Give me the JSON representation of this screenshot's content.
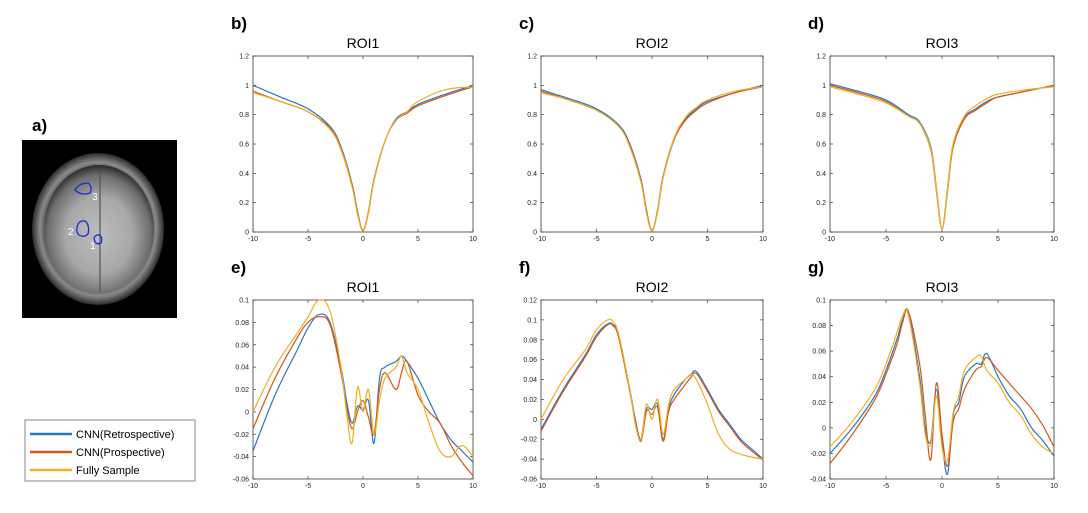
{
  "colors": {
    "retro": "#2a76c6",
    "prosp": "#d9541a",
    "full": "#edb120",
    "roi_outline": "#1a2fd0"
  },
  "legend": {
    "entries": [
      {
        "name": "CNN(Retrospective)",
        "color": "#2a76c6"
      },
      {
        "name": "CNN(Prospective)",
        "color": "#d9541a"
      },
      {
        "name": "Fully Sample",
        "color": "#edb120"
      }
    ]
  },
  "image_panel": {
    "label": "a)",
    "roi_numbers": [
      "1",
      "2",
      "3"
    ]
  },
  "chart_data": [
    {
      "id": "b",
      "label": "b)",
      "title": "ROI1",
      "type": "line",
      "xlim": [
        -10,
        10
      ],
      "ylim": [
        0,
        1.2
      ],
      "xticks": [
        "-10",
        "-5",
        "0",
        "5",
        "10"
      ],
      "yticks": [
        "0",
        "0.2",
        "0.4",
        "0.6",
        "0.8",
        "1",
        "1.2"
      ],
      "series": [
        {
          "name": "CNN(Retrospective)",
          "key": "retro",
          "x": [
            -10,
            -7.5,
            -5,
            -3,
            -2,
            -1,
            -0.5,
            0,
            0.5,
            1,
            2,
            3,
            4,
            5,
            7.5,
            10
          ],
          "values": [
            1.0,
            0.92,
            0.84,
            0.72,
            0.58,
            0.33,
            0.14,
            0.01,
            0.14,
            0.36,
            0.62,
            0.77,
            0.82,
            0.87,
            0.94,
            1.0
          ]
        },
        {
          "name": "CNN(Prospective)",
          "key": "prosp",
          "x": [
            -10,
            -7.5,
            -5,
            -3,
            -2,
            -1,
            -0.5,
            0,
            0.5,
            1,
            2,
            3,
            4,
            5,
            7.5,
            10
          ],
          "values": [
            0.96,
            0.89,
            0.82,
            0.71,
            0.57,
            0.32,
            0.13,
            0.01,
            0.14,
            0.35,
            0.62,
            0.76,
            0.81,
            0.86,
            0.93,
            0.99
          ]
        },
        {
          "name": "Fully Sample",
          "key": "full",
          "x": [
            -10,
            -7.5,
            -5,
            -3,
            -2,
            -1,
            -0.5,
            0,
            0.5,
            1,
            2,
            3,
            4,
            5,
            7.5,
            10
          ],
          "values": [
            0.95,
            0.89,
            0.82,
            0.7,
            0.56,
            0.31,
            0.12,
            0.01,
            0.13,
            0.35,
            0.62,
            0.76,
            0.82,
            0.89,
            0.97,
            0.99
          ]
        }
      ]
    },
    {
      "id": "c",
      "label": "c)",
      "title": "ROI2",
      "type": "line",
      "xlim": [
        -10,
        10
      ],
      "ylim": [
        0,
        1.2
      ],
      "xticks": [
        "-10",
        "-5",
        "0",
        "5",
        "10"
      ],
      "yticks": [
        "0",
        "0.2",
        "0.4",
        "0.6",
        "0.8",
        "1",
        "1.2"
      ],
      "series": [
        {
          "name": "CNN(Retrospective)",
          "key": "retro",
          "x": [
            -10,
            -7.5,
            -5,
            -3,
            -2,
            -1,
            -0.5,
            0,
            0.5,
            1,
            2,
            3,
            4,
            5,
            7.5,
            10
          ],
          "values": [
            0.97,
            0.91,
            0.84,
            0.73,
            0.6,
            0.36,
            0.15,
            0.01,
            0.15,
            0.38,
            0.64,
            0.77,
            0.84,
            0.89,
            0.95,
            1.0
          ]
        },
        {
          "name": "CNN(Prospective)",
          "key": "prosp",
          "x": [
            -10,
            -7.5,
            -5,
            -3,
            -2,
            -1,
            -0.5,
            0,
            0.5,
            1,
            2,
            3,
            4,
            5,
            7.5,
            10
          ],
          "values": [
            0.96,
            0.9,
            0.83,
            0.72,
            0.59,
            0.35,
            0.14,
            0.01,
            0.14,
            0.37,
            0.63,
            0.76,
            0.83,
            0.88,
            0.95,
            0.99
          ]
        },
        {
          "name": "Fully Sample",
          "key": "full",
          "x": [
            -10,
            -7.5,
            -5,
            -3,
            -2,
            -1,
            -0.5,
            0,
            0.5,
            1,
            2,
            3,
            4,
            5,
            7.5,
            10
          ],
          "values": [
            0.95,
            0.9,
            0.83,
            0.72,
            0.58,
            0.34,
            0.13,
            0.01,
            0.14,
            0.37,
            0.64,
            0.78,
            0.85,
            0.9,
            0.96,
            0.99
          ]
        }
      ]
    },
    {
      "id": "d",
      "label": "d)",
      "title": "ROI3",
      "type": "line",
      "xlim": [
        -10,
        10
      ],
      "ylim": [
        0,
        1.2
      ],
      "xticks": [
        "-10",
        "-5",
        "0",
        "5",
        "10"
      ],
      "yticks": [
        "0",
        "0.2",
        "0.4",
        "0.6",
        "0.8",
        "1",
        "1.2"
      ],
      "series": [
        {
          "name": "CNN(Retrospective)",
          "key": "retro",
          "x": [
            -10,
            -7.5,
            -5,
            -3,
            -2,
            -1,
            -0.5,
            0,
            0.5,
            1,
            2,
            3,
            4,
            5,
            7.5,
            10
          ],
          "values": [
            1.01,
            0.96,
            0.9,
            0.8,
            0.75,
            0.58,
            0.3,
            0.02,
            0.3,
            0.6,
            0.78,
            0.84,
            0.89,
            0.92,
            0.96,
            1.0
          ]
        },
        {
          "name": "CNN(Prospective)",
          "key": "prosp",
          "x": [
            -10,
            -7.5,
            -5,
            -3,
            -2,
            -1,
            -0.5,
            0,
            0.5,
            1,
            2,
            3,
            4,
            5,
            7.5,
            10
          ],
          "values": [
            1.0,
            0.95,
            0.89,
            0.79,
            0.74,
            0.56,
            0.28,
            0.02,
            0.28,
            0.58,
            0.77,
            0.83,
            0.88,
            0.92,
            0.96,
            1.0
          ]
        },
        {
          "name": "Fully Sample",
          "key": "full",
          "x": [
            -10,
            -7.5,
            -5,
            -3,
            -2,
            -1,
            -0.5,
            0,
            0.5,
            1,
            2,
            3,
            4,
            5,
            7.5,
            10
          ],
          "values": [
            0.99,
            0.94,
            0.88,
            0.79,
            0.74,
            0.57,
            0.29,
            0.02,
            0.29,
            0.6,
            0.79,
            0.86,
            0.91,
            0.94,
            0.97,
            0.99
          ]
        }
      ]
    },
    {
      "id": "e",
      "label": "e)",
      "title": "ROI1",
      "type": "line",
      "xlim": [
        -10,
        10
      ],
      "ylim": [
        -0.06,
        0.1
      ],
      "xticks": [
        "-10",
        "-5",
        "0",
        "5",
        "10"
      ],
      "yticks": [
        "-0.06",
        "-0.04",
        "-0.02",
        "0",
        "0.02",
        "0.04",
        "0.06",
        "0.08",
        "0.1"
      ],
      "series": [
        {
          "name": "CNN(Retrospective)",
          "key": "retro",
          "x": [
            -10,
            -8,
            -6,
            -5,
            -4,
            -3,
            -2,
            -1.5,
            -1,
            -0.5,
            0,
            0.5,
            1,
            1.5,
            2,
            3,
            3.5,
            4,
            5,
            6,
            7,
            8,
            9,
            10
          ],
          "values": [
            -0.035,
            0.015,
            0.055,
            0.075,
            0.087,
            0.08,
            0.04,
            0.01,
            -0.01,
            0.005,
            0.002,
            0.01,
            -0.028,
            0.03,
            0.04,
            0.045,
            0.05,
            0.045,
            0.03,
            0.01,
            -0.01,
            -0.025,
            -0.035,
            -0.045
          ]
        },
        {
          "name": "CNN(Prospective)",
          "key": "prosp",
          "x": [
            -10,
            -8,
            -6,
            -5,
            -4,
            -3,
            -2,
            -1.5,
            -1,
            -0.5,
            0,
            0.5,
            1,
            1.5,
            2,
            3,
            3.5,
            4,
            5,
            6,
            7,
            8,
            9,
            10
          ],
          "values": [
            -0.015,
            0.03,
            0.066,
            0.08,
            0.085,
            0.078,
            0.035,
            0.005,
            -0.015,
            0.0,
            0.01,
            -0.005,
            -0.02,
            0.02,
            0.035,
            0.02,
            0.035,
            0.045,
            0.015,
            0.0,
            -0.01,
            -0.03,
            -0.045,
            -0.057
          ]
        },
        {
          "name": "Fully Sample",
          "key": "full",
          "x": [
            -10,
            -8,
            -6,
            -5,
            -4,
            -3,
            -2,
            -1.5,
            -1,
            -0.5,
            0,
            0.5,
            1,
            1.5,
            2,
            3,
            3.5,
            4,
            5,
            6,
            7,
            8,
            9,
            10
          ],
          "values": [
            0.0,
            0.04,
            0.07,
            0.085,
            0.1,
            0.09,
            0.04,
            0.0,
            -0.028,
            0.022,
            0.0,
            0.02,
            -0.02,
            0.01,
            0.03,
            0.04,
            0.05,
            0.035,
            0.02,
            -0.01,
            -0.035,
            -0.04,
            -0.03,
            -0.04
          ]
        }
      ]
    },
    {
      "id": "f",
      "label": "f)",
      "title": "ROI2",
      "type": "line",
      "xlim": [
        -10,
        10
      ],
      "ylim": [
        -0.06,
        0.12
      ],
      "xticks": [
        "-10",
        "-5",
        "0",
        "5",
        "10"
      ],
      "yticks": [
        "-0.06",
        "-0.04",
        "-0.02",
        "0",
        "0.02",
        "0.04",
        "0.06",
        "0.08",
        "0.1",
        "0.12"
      ],
      "series": [
        {
          "name": "CNN(Retrospective)",
          "key": "retro",
          "x": [
            -10,
            -8,
            -6,
            -5,
            -4,
            -3.5,
            -3,
            -2,
            -1.5,
            -1,
            -0.5,
            0,
            0.5,
            1,
            1.5,
            2,
            3,
            3.5,
            4,
            5,
            6,
            7,
            8,
            9,
            10
          ],
          "values": [
            -0.01,
            0.03,
            0.065,
            0.085,
            0.096,
            0.095,
            0.085,
            0.03,
            0.0,
            -0.02,
            0.01,
            0.01,
            0.015,
            -0.02,
            0.01,
            0.025,
            0.04,
            0.045,
            0.048,
            0.03,
            0.01,
            -0.005,
            -0.02,
            -0.03,
            -0.04
          ]
        },
        {
          "name": "CNN(Prospective)",
          "key": "prosp",
          "x": [
            -10,
            -8,
            -6,
            -5,
            -4,
            -3.5,
            -3,
            -2,
            -1.5,
            -1,
            -0.5,
            0,
            0.5,
            1,
            1.5,
            2,
            3,
            3.5,
            4,
            5,
            6,
            7,
            8,
            9,
            10
          ],
          "values": [
            -0.012,
            0.028,
            0.063,
            0.083,
            0.095,
            0.094,
            0.082,
            0.028,
            -0.002,
            -0.022,
            0.008,
            0.005,
            0.012,
            -0.022,
            0.008,
            0.02,
            0.035,
            0.042,
            0.046,
            0.028,
            0.008,
            -0.007,
            -0.022,
            -0.032,
            -0.041
          ]
        },
        {
          "name": "Fully Sample",
          "key": "full",
          "x": [
            -10,
            -8,
            -6,
            -5,
            -4,
            -3.5,
            -3,
            -2,
            -1.5,
            -1,
            -0.5,
            0,
            0.5,
            1,
            1.5,
            2,
            3,
            3.5,
            4,
            5,
            6,
            7,
            8,
            9,
            10
          ],
          "values": [
            0.0,
            0.04,
            0.07,
            0.09,
            0.1,
            0.098,
            0.085,
            0.03,
            -0.005,
            -0.02,
            0.015,
            0.0,
            0.02,
            -0.015,
            0.015,
            0.03,
            0.04,
            0.045,
            0.04,
            0.015,
            -0.015,
            -0.03,
            -0.035,
            -0.038,
            -0.04
          ]
        }
      ]
    },
    {
      "id": "g",
      "label": "g)",
      "title": "ROI3",
      "type": "line",
      "xlim": [
        -10,
        10
      ],
      "ylim": [
        -0.04,
        0.1
      ],
      "xticks": [
        "-10",
        "-5",
        "0",
        "5",
        "10"
      ],
      "yticks": [
        "-0.04",
        "-0.02",
        "0",
        "0.02",
        "0.04",
        "0.06",
        "0.08",
        "0.1"
      ],
      "series": [
        {
          "name": "CNN(Retrospective)",
          "key": "retro",
          "x": [
            -10,
            -8,
            -6,
            -5,
            -4,
            -3.5,
            -3,
            -2,
            -1.5,
            -1,
            -0.5,
            0,
            0.5,
            1,
            1.5,
            2,
            3,
            3.5,
            4,
            5,
            6,
            7,
            8,
            9,
            10
          ],
          "values": [
            -0.02,
            0.0,
            0.025,
            0.045,
            0.07,
            0.085,
            0.09,
            0.04,
            0.0,
            -0.01,
            0.03,
            -0.01,
            -0.036,
            0.01,
            0.02,
            0.04,
            0.05,
            0.05,
            0.058,
            0.04,
            0.025,
            0.015,
            0.0,
            -0.01,
            -0.022
          ]
        },
        {
          "name": "CNN(Prospective)",
          "key": "prosp",
          "x": [
            -10,
            -8,
            -6,
            -5,
            -4,
            -3.5,
            -3,
            -2,
            -1.5,
            -1,
            -0.5,
            0,
            0.5,
            1,
            1.5,
            2,
            3,
            3.5,
            4,
            5,
            6,
            7,
            8,
            9,
            10
          ],
          "values": [
            -0.028,
            -0.005,
            0.022,
            0.042,
            0.066,
            0.083,
            0.091,
            0.05,
            0.01,
            -0.025,
            0.035,
            -0.005,
            -0.03,
            0.005,
            0.015,
            0.03,
            0.045,
            0.048,
            0.055,
            0.045,
            0.035,
            0.025,
            0.015,
            0.002,
            -0.015
          ]
        },
        {
          "name": "Fully Sample",
          "key": "full",
          "x": [
            -10,
            -8,
            -6,
            -5,
            -4,
            -3.5,
            -3,
            -2,
            -1.5,
            -1,
            -0.5,
            0,
            0.5,
            1,
            1.5,
            2,
            3,
            3.5,
            4,
            5,
            6,
            7,
            8,
            9,
            10
          ],
          "values": [
            -0.015,
            0.005,
            0.03,
            0.05,
            0.075,
            0.088,
            0.088,
            0.035,
            -0.005,
            -0.012,
            0.025,
            -0.015,
            -0.025,
            0.012,
            0.025,
            0.045,
            0.055,
            0.056,
            0.045,
            0.035,
            0.02,
            0.01,
            -0.005,
            -0.015,
            -0.02
          ]
        }
      ]
    }
  ]
}
